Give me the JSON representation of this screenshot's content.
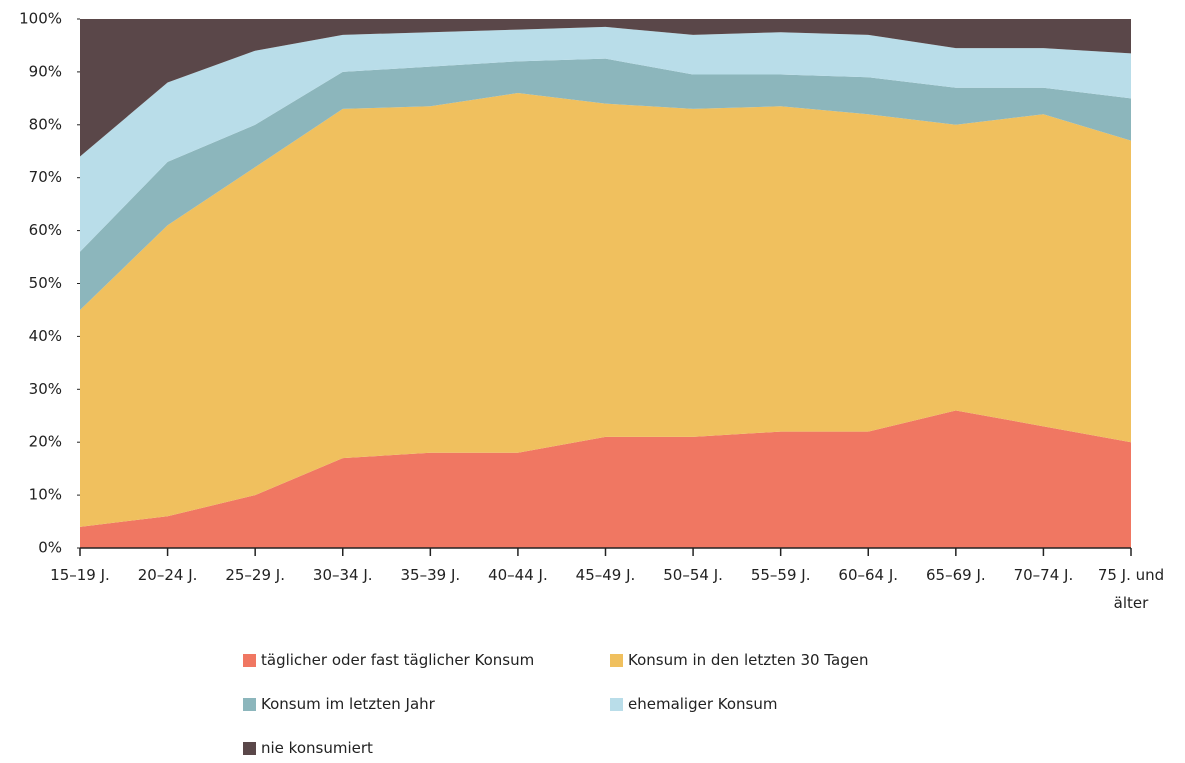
{
  "chart_data": {
    "type": "stacked_area",
    "categories": [
      "15–19 J.",
      "20–24 J.",
      "25–29 J.",
      "30–34 J.",
      "35–39 J.",
      "40–44 J.",
      "45–49 J.",
      "50–54 J.",
      "55–59 J.",
      "60–64 J.",
      "65–69 J.",
      "70–74 J.",
      "75 J. und älter"
    ],
    "series": [
      {
        "name": "täglicher oder fast täglicher Konsum",
        "color": "#f07762",
        "values": [
          4,
          6,
          10,
          17,
          18,
          18,
          21,
          21,
          22,
          22,
          26,
          23,
          20
        ]
      },
      {
        "name": "Konsum in den letzten 30 Tagen",
        "color": "#f0c05e",
        "values": [
          41,
          55,
          62,
          66,
          65.5,
          68,
          63,
          62,
          61.5,
          60,
          54,
          59,
          57
        ]
      },
      {
        "name": "Konsum im letzten Jahr",
        "color": "#8cb6bc",
        "values": [
          11,
          12,
          8,
          7,
          7.5,
          6,
          8.5,
          6.5,
          6,
          7,
          7,
          5,
          8
        ]
      },
      {
        "name": "ehemaliger Konsum",
        "color": "#b9dde9",
        "values": [
          18,
          15,
          14,
          7,
          6.5,
          6,
          6,
          7.5,
          8,
          8,
          7.5,
          7.5,
          8.5
        ]
      },
      {
        "name": "nie konsumiert",
        "color": "#5a4749",
        "values": [
          26,
          12,
          6,
          3,
          2.5,
          2,
          1.5,
          3,
          2.5,
          3,
          5.5,
          5.5,
          6.5
        ]
      }
    ],
    "ylim": [
      0,
      100
    ],
    "yticks": [
      {
        "value": 0,
        "label": "0%"
      },
      {
        "value": 10,
        "label": "10%"
      },
      {
        "value": 20,
        "label": "20%"
      },
      {
        "value": 30,
        "label": "30%"
      },
      {
        "value": 40,
        "label": "40%"
      },
      {
        "value": 50,
        "label": "50%"
      },
      {
        "value": 60,
        "label": "60%"
      },
      {
        "value": 70,
        "label": "70%"
      },
      {
        "value": 80,
        "label": "80%"
      },
      {
        "value": 90,
        "label": "90%"
      },
      {
        "value": 100,
        "label": "100%"
      }
    ]
  }
}
